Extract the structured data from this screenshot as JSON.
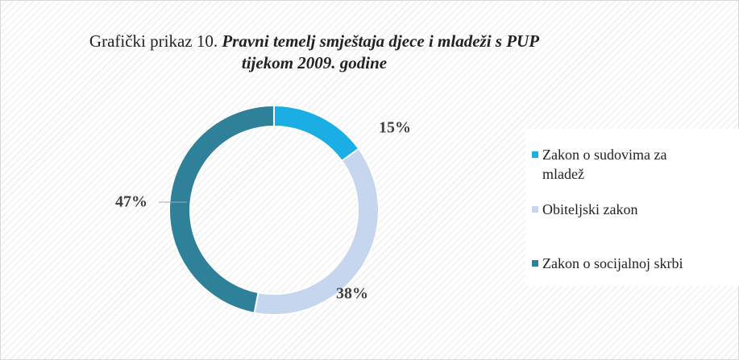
{
  "chart_data": {
    "type": "donut",
    "title": [
      "Grafički prikaz 10.",
      "Pravni temelj smještaja djece i mladeži s PUP tijekom 2009. godine"
    ],
    "categories": [
      "Zakon o sudovima za mladež",
      "Obiteljski zakon",
      "Zakon o socijalnoj skrbi"
    ],
    "values": [
      15,
      38,
      47
    ],
    "value_labels": [
      "15%",
      "38%",
      "47%"
    ],
    "colors": [
      "#1aaee5",
      "#c6d6ee",
      "#2e8199"
    ],
    "legend": "right"
  }
}
